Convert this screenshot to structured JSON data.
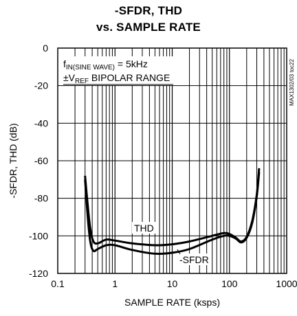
{
  "chart_data": {
    "type": "line",
    "title_line1": "-SFDR, THD",
    "title_line2": "vs. SAMPLE RATE",
    "xlabel": "SAMPLE RATE (ksps)",
    "ylabel": "-SFDR, THD (dB)",
    "xscale": "log",
    "xlim": [
      0.1,
      1000
    ],
    "ylim": [
      -120,
      0
    ],
    "x_ticks": [
      0.1,
      1,
      10,
      100,
      1000
    ],
    "x_tick_labels": [
      "0.1",
      "1",
      "10",
      "100",
      "1000"
    ],
    "y_ticks": [
      0,
      -20,
      -40,
      -60,
      -80,
      -100,
      -120
    ],
    "y_tick_labels": [
      "0",
      "-20",
      "-40",
      "-60",
      "-80",
      "-100",
      "-120"
    ],
    "grid": true,
    "annotation": {
      "f_main": "f",
      "f_sub": "IN(SINE WAVE)",
      "f_rest": " = 5kHz",
      "v_prefix": "±V",
      "v_sub": "REF",
      "v_rest": " BIPOLAR RANGE"
    },
    "side_label": "MAX1302/03 toc22",
    "series": [
      {
        "name": "THD",
        "x": [
          0.3,
          0.33,
          0.37,
          0.42,
          0.5,
          0.7,
          1,
          2,
          5,
          10,
          20,
          50,
          80,
          100,
          130,
          160,
          200,
          250,
          300,
          330
        ],
        "values": [
          -68,
          -82,
          -96,
          -103,
          -104,
          -102,
          -102.5,
          -104,
          -105,
          -104.5,
          -103,
          -100,
          -98.5,
          -99,
          -101,
          -103,
          -100.5,
          -92,
          -78,
          -64
        ]
      },
      {
        "name": "-SFDR",
        "x": [
          0.3,
          0.33,
          0.37,
          0.42,
          0.5,
          0.7,
          1,
          2,
          5,
          10,
          20,
          50,
          80,
          100,
          130,
          160,
          200,
          250,
          300,
          330
        ],
        "values": [
          -70,
          -88,
          -103,
          -108,
          -107,
          -105,
          -105,
          -107.5,
          -109.5,
          -109,
          -107,
          -102,
          -100,
          -100,
          -101.5,
          -103.5,
          -101,
          -93,
          -79,
          -66
        ]
      }
    ],
    "series_labels": [
      "THD",
      "-SFDR"
    ]
  }
}
